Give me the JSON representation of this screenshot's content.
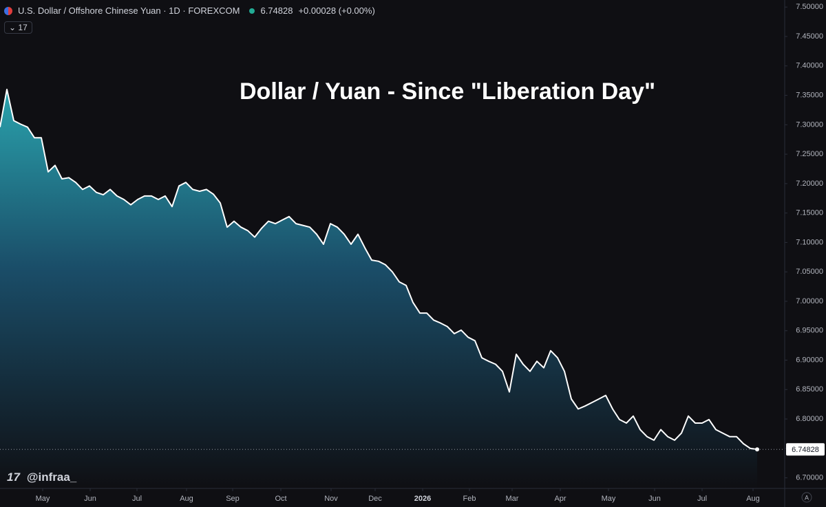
{
  "header": {
    "symbol": "U.S. Dollar / Offshore Chinese Yuan · 1D · FOREXCOM",
    "change": "+0.00028 (+0.00%)",
    "indicator_count": "17",
    "watermark": "@infraa_",
    "scale_mode": "A"
  },
  "chart_data": {
    "type": "line",
    "title": "Dollar / Yuan - Since \"Liberation Day\"",
    "color": "#ffffff",
    "values": [
      7.296,
      7.36,
      7.307,
      7.301,
      7.296,
      7.278,
      7.278,
      7.22,
      7.231,
      7.208,
      7.21,
      7.202,
      7.19,
      7.196,
      7.185,
      7.181,
      7.19,
      7.179,
      7.173,
      7.164,
      7.173,
      7.179,
      7.179,
      7.173,
      7.179,
      7.161,
      7.196,
      7.202,
      7.19,
      7.187,
      7.19,
      7.182,
      7.167,
      7.126,
      7.136,
      7.126,
      7.12,
      7.109,
      7.124,
      7.136,
      7.132,
      7.138,
      7.144,
      7.132,
      7.129,
      7.126,
      7.114,
      7.097,
      7.132,
      7.126,
      7.114,
      7.097,
      7.114,
      7.091,
      7.07,
      7.068,
      7.062,
      7.05,
      7.033,
      7.027,
      6.998,
      6.98,
      6.98,
      6.968,
      6.963,
      6.957,
      6.945,
      6.951,
      6.939,
      6.933,
      6.904,
      6.898,
      6.893,
      6.881,
      6.846,
      6.91,
      6.893,
      6.881,
      6.898,
      6.887,
      6.916,
      6.904,
      6.881,
      6.834,
      6.817,
      6.822,
      6.828,
      6.834,
      6.84,
      6.817,
      6.799,
      6.793,
      6.805,
      6.782,
      6.77,
      6.764,
      6.782,
      6.77,
      6.764,
      6.776,
      6.805,
      6.793,
      6.793,
      6.799,
      6.782,
      6.776,
      6.77,
      6.77,
      6.758,
      6.75,
      6.74828
    ],
    "xlim": [
      0,
      114
    ],
    "xticks": [
      {
        "value": 6.2,
        "label": "May"
      },
      {
        "value": 13.1,
        "label": "Jun"
      },
      {
        "value": 19.9,
        "label": "Jul"
      },
      {
        "value": 27.1,
        "label": "Aug"
      },
      {
        "value": 33.8,
        "label": "Sep"
      },
      {
        "value": 40.8,
        "label": "Oct"
      },
      {
        "value": 48.1,
        "label": "Nov"
      },
      {
        "value": 54.5,
        "label": "Dec"
      },
      {
        "value": 61.4,
        "label": "2026"
      },
      {
        "value": 68.2,
        "label": "Feb"
      },
      {
        "value": 74.4,
        "label": "Mar"
      },
      {
        "value": 81.4,
        "label": "Apr"
      },
      {
        "value": 88.4,
        "label": "May"
      },
      {
        "value": 95.1,
        "label": "Jun"
      },
      {
        "value": 102,
        "label": "Jul"
      },
      {
        "value": 109.4,
        "label": "Aug"
      }
    ],
    "ylim": [
      6.682,
      7.512
    ],
    "yticks": [
      {
        "value": 6.7,
        "label": "6.70000"
      },
      {
        "value": 6.75,
        "label": "6.75000"
      },
      {
        "value": 6.8,
        "label": "6.80000"
      },
      {
        "value": 6.85,
        "label": "6.85000"
      },
      {
        "value": 6.9,
        "label": "6.90000"
      },
      {
        "value": 6.95,
        "label": "6.95000"
      },
      {
        "value": 7.0,
        "label": "7.00000"
      },
      {
        "value": 7.05,
        "label": "7.05000"
      },
      {
        "value": 7.1,
        "label": "7.10000"
      },
      {
        "value": 7.15,
        "label": "7.15000"
      },
      {
        "value": 7.2,
        "label": "7.20000"
      },
      {
        "value": 7.25,
        "label": "7.25000"
      },
      {
        "value": 7.3,
        "label": "7.30000"
      },
      {
        "value": 7.35,
        "label": "7.35000"
      },
      {
        "value": 7.4,
        "label": "7.40000"
      },
      {
        "value": 7.45,
        "label": "7.45000"
      },
      {
        "value": 7.5,
        "label": "7.50000"
      }
    ]
  }
}
